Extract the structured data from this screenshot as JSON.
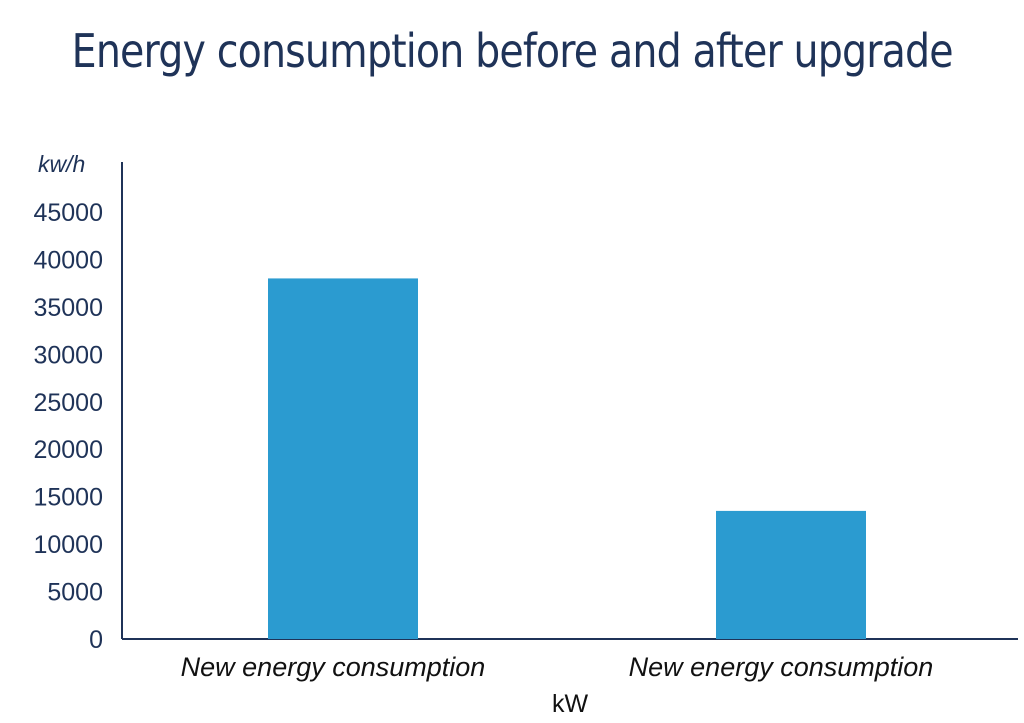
{
  "chart_data": {
    "type": "bar",
    "title": "Energy consumption before and after upgrade",
    "ylabel": "kw/h",
    "xlabel": "kW",
    "categories": [
      "New energy consumption",
      "New energy consumption"
    ],
    "values": [
      38000,
      13500
    ],
    "ylim": [
      0,
      45000
    ],
    "yticks": [
      0,
      5000,
      10000,
      15000,
      20000,
      25000,
      30000,
      35000,
      40000,
      45000
    ],
    "grid": false,
    "legend": "none",
    "colors": {
      "bar": "#2b9bd0",
      "axis": "#1f3358",
      "title": "#1f3358"
    }
  }
}
